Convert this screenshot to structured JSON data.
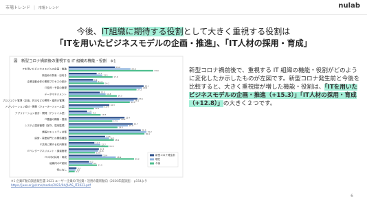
{
  "header": {
    "section": "市場トレンド",
    "subsection": "市場トレンド",
    "logo": "nulab"
  },
  "title": {
    "line1_before": "今後、",
    "line1_highlight": "IT組織に期待する役割",
    "line1_after": "として大きく重視する役割は",
    "line2": "「ITを用いたビジネスモデルの企画・推進」、「IT人材の採用・育成」"
  },
  "chart_data": {
    "type": "barh",
    "title": "図　新型コロナ禍前後の重視する IT 組織の機能・役割　※1",
    "categories": [
      "ITを用いたビジネスモデルの企画・推進",
      "新技術の探索・目利き",
      "企業活動全体の業務プロセスの設計",
      "IT投資・予算の管理",
      "データマネジメント",
      "プロジェクト管理（企画、外注などの開発・運用の管理）",
      "アプリケーション設計・開発（ウォーターフォール型）",
      "アプリケーション設計・開発（アジャイル型）",
      "IT基盤の構築・運用",
      "システム運用管理（保守、運用監視）",
      "情報セキュリティ対策",
      "経営・事業部門との関係構築",
      "IT活用に関する社内教育",
      "ITベンダーマネジメント・調達管理",
      "IT人材の採用・育成",
      "組織内のIT統制",
      "特になし"
    ],
    "series": [
      {
        "name": "新型コロナ発生前",
        "color": "#2d4f8a",
        "values": [
          18.6,
          11.2,
          9.8,
          30.1,
          12.5,
          27.6,
          16.3,
          7.4,
          22.4,
          25.7,
          28.9,
          14.6,
          10.3,
          12.1,
          13.4,
          8.2,
          3.1
        ]
      },
      {
        "name": "現在",
        "color": "#8fb3df",
        "values": [
          24.8,
          13.5,
          11.4,
          29.4,
          14.8,
          26.1,
          13.9,
          9.2,
          20.6,
          23.8,
          31.2,
          16.2,
          12.7,
          11.8,
          18.9,
          9.5,
          2.8
        ]
      },
      {
        "name": "今後",
        "color": "#4fbf8f",
        "values": [
          33.9,
          17.6,
          14.2,
          27.2,
          19.3,
          24.5,
          10.1,
          12.8,
          17.5,
          19.6,
          30.4,
          18.1,
          15.9,
          10.6,
          26.2,
          11.3,
          2.4
        ]
      }
    ],
    "xlim": [
      0,
      40
    ],
    "legend": "lower-right"
  },
  "body": {
    "before": "新型コロナ禍前後で、重視する IT 組織の機能・役割がどのように変化したか示したものが左図です。新型コロナ発生前と今後を比較すると、大きく重視度が増した機能・役割は、",
    "highlight": "「ITを用いたビジネスモデルの企画・推進（+15.3）」「IT人材の採用・育成（+12.8）」",
    "after": "の大きく２つです。"
  },
  "footnote": {
    "source": "※1 企業IT動向調査報告書 2021 ユーザー企業のIT投資・活用の最新動向（2020年度調査） p154より",
    "url": "https://juas.or.jp/cms/media/2021/04/JUAS_IT2021.pdf"
  },
  "page_number": "6"
}
